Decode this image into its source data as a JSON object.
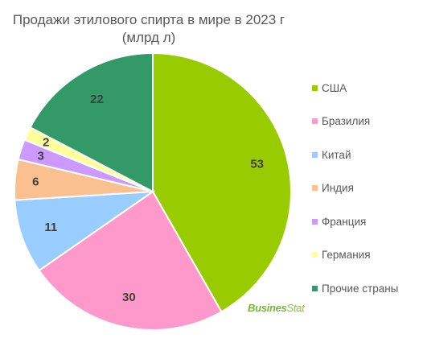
{
  "chart_data": {
    "type": "pie",
    "title_lines": [
      "Продажи этилового спирта в мире в 2023 г",
      "(млрд л)"
    ],
    "categories": [
      "США",
      "Бразилия",
      "Китай",
      "Индия",
      "Франция",
      "Германия",
      "Прочие страны"
    ],
    "values": [
      53,
      30,
      11,
      6,
      3,
      2,
      22
    ],
    "colors": [
      "#99cc00",
      "#ff99cc",
      "#99ccff",
      "#fac090",
      "#cc99ff",
      "#ffff99",
      "#339966"
    ],
    "data_labels": [
      "53",
      "30",
      "11",
      "6",
      "3",
      "2",
      "22"
    ],
    "legend_position": "right",
    "start": "12 o'clock, clockwise"
  },
  "watermark": {
    "part1": "Busines",
    "part2": "Stat"
  }
}
